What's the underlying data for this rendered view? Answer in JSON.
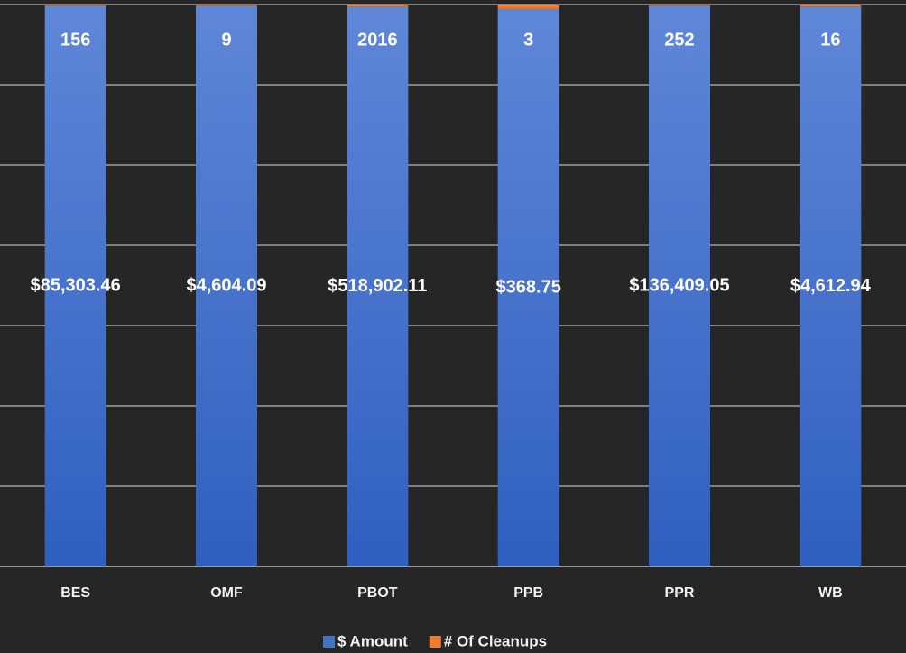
{
  "chart_data": {
    "type": "bar",
    "stacking": "percent",
    "categories": [
      "BES",
      "OMF",
      "PBOT",
      "PPB",
      "PPR",
      "WB"
    ],
    "series": [
      {
        "name": "$ Amount",
        "color": "#4472c4",
        "values": [
          85303.46,
          4604.09,
          518902.11,
          368.75,
          136409.05,
          4612.94
        ],
        "value_labels": [
          "$85,303.46",
          "$4,604.09",
          "$518,902.11",
          "$368.75",
          "$136,409.05",
          "$4,612.94"
        ]
      },
      {
        "name": "# Of Cleanups",
        "color": "#ed7d31",
        "values": [
          156,
          9,
          2016,
          3,
          252,
          16
        ]
      }
    ]
  }
}
